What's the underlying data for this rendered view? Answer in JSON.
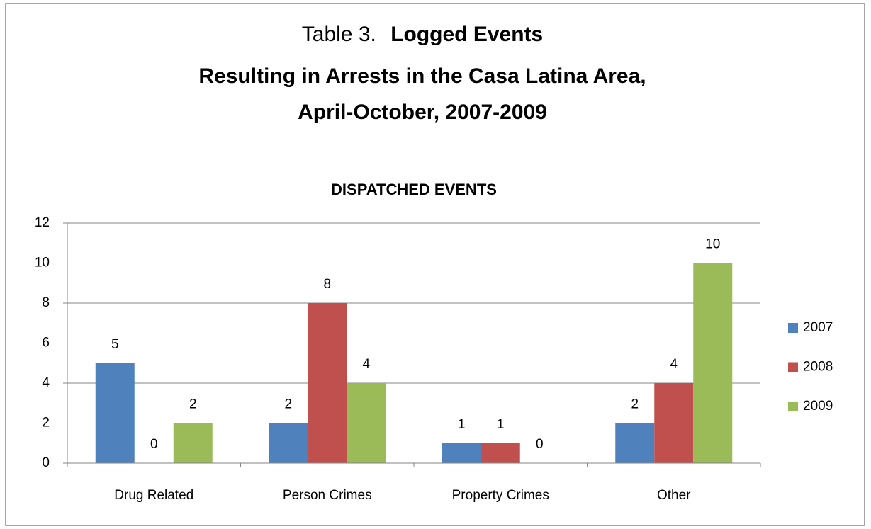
{
  "chart_data": {
    "type": "bar",
    "title": [
      "Table 3.",
      "Logged Events",
      "Resulting in Arrests in the Casa Latina Area,",
      "April-October, 2007-2009"
    ],
    "subtitle": "DISPATCHED EVENTS",
    "categories": [
      "Drug Related",
      "Person Crimes",
      "Property Crimes",
      "Other"
    ],
    "series": [
      {
        "name": "2007",
        "color": "#4f81bd",
        "values": [
          5,
          2,
          1,
          2
        ]
      },
      {
        "name": "2008",
        "color": "#c0504d",
        "values": [
          0,
          8,
          1,
          4
        ]
      },
      {
        "name": "2009",
        "color": "#9bbb59",
        "values": [
          2,
          4,
          0,
          10
        ]
      }
    ],
    "ylim": [
      0,
      12
    ],
    "yticks": [
      0,
      2,
      4,
      6,
      8,
      10,
      12
    ],
    "grid": true,
    "legend": "right"
  }
}
